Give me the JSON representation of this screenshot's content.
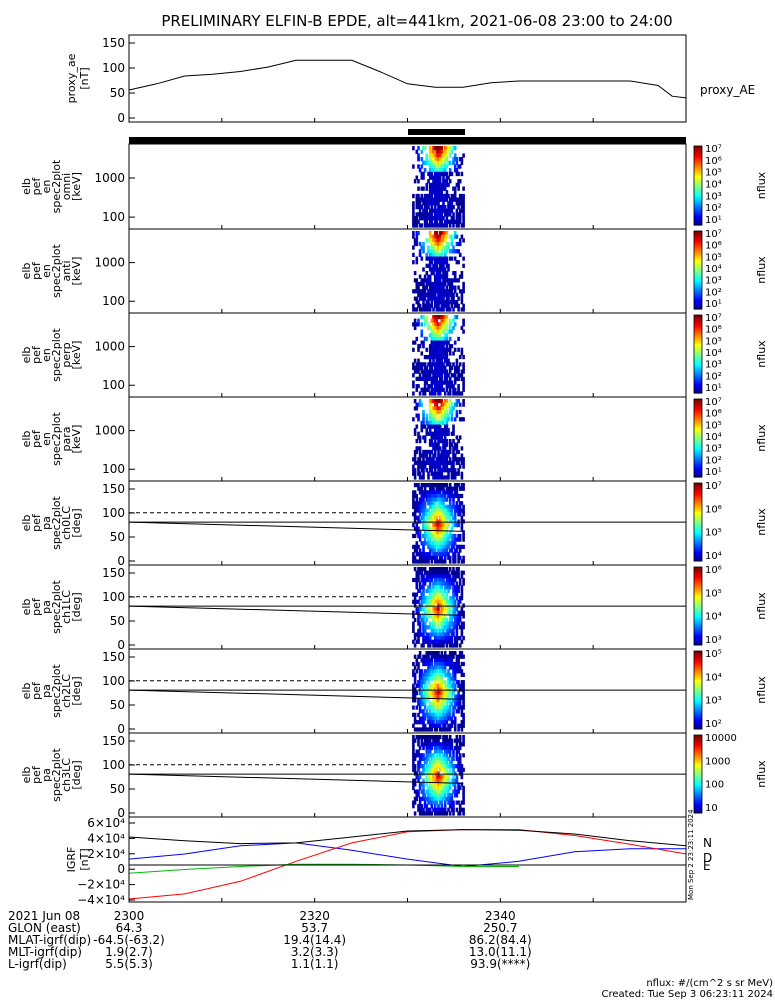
{
  "title": "PRELIMINARY ELFIN-B EPDE, alt=441km, 2021-06-08 23:00 to 24:00",
  "colors": {
    "night_bar": "#000000",
    "day_bar": "#ffd700",
    "science_zone": "#ff1a1a",
    "grf_n": "#0000ff",
    "grf_d": "#ff0000",
    "grf_e": "#00bb00"
  },
  "panels": {
    "proxy_ae": {
      "ylabel_lines": [
        "proxy_ae",
        "[nT]"
      ],
      "ticks": [
        "150",
        "100",
        "50",
        "0"
      ],
      "legend": "proxy_AE"
    },
    "pef_omni": {
      "ylabel_lines": [
        "elb",
        "pef",
        "en",
        "spec2plot",
        "omni",
        "[keV]"
      ],
      "ticks": [
        "1000",
        "100"
      ]
    },
    "pef_anti": {
      "ylabel_lines": [
        "elb",
        "pef",
        "en",
        "spec2plot",
        "anti",
        "[keV]"
      ],
      "ticks": [
        "1000",
        "100"
      ]
    },
    "pef_perp": {
      "ylabel_lines": [
        "elb",
        "pef",
        "en",
        "spec2plot",
        "perp",
        "[keV]"
      ],
      "ticks": [
        "1000",
        "100"
      ]
    },
    "pef_para": {
      "ylabel_lines": [
        "elb",
        "pef",
        "en",
        "spec2plot",
        "para",
        "[keV]"
      ],
      "ticks": [
        "1000",
        "100"
      ]
    },
    "pa_ch0": {
      "ylabel_lines": [
        "elb",
        "pef",
        "pa",
        "spec2plot",
        "ch0LC",
        "[deg]"
      ],
      "ticks": [
        "150",
        "100",
        "50",
        "0"
      ]
    },
    "pa_ch1": {
      "ylabel_lines": [
        "elb",
        "pef",
        "pa",
        "spec2plot",
        "ch1LC",
        "[deg]"
      ],
      "ticks": [
        "150",
        "100",
        "50",
        "0"
      ]
    },
    "pa_ch2": {
      "ylabel_lines": [
        "elb",
        "pef",
        "pa",
        "spec2plot",
        "ch2LC",
        "[deg]"
      ],
      "ticks": [
        "150",
        "100",
        "50",
        "0"
      ]
    },
    "pa_ch3": {
      "ylabel_lines": [
        "elb",
        "pef",
        "pa",
        "spec2plot",
        "ch3LC",
        "[deg]"
      ],
      "ticks": [
        "150",
        "100",
        "50",
        "0"
      ]
    },
    "grf": {
      "ylabel_lines": [
        "IGRF",
        "[nT]"
      ],
      "ticks": [
        "6×10⁴",
        "4×10⁴",
        "2×10⁴",
        "0",
        "−2×10⁴",
        "−4×10⁴"
      ],
      "legend": [
        "N",
        "D",
        "E"
      ]
    }
  },
  "colorbars": {
    "cb1": {
      "ticks": [
        "10⁷",
        "10⁶",
        "10⁵",
        "10⁴",
        "10³",
        "10²",
        "10¹"
      ],
      "label": "nflux"
    },
    "cb2": {
      "ticks": [
        "10⁷",
        "10⁶",
        "10⁵",
        "10⁴",
        "10³",
        "10²",
        "10¹"
      ],
      "label": "nflux"
    },
    "cb3": {
      "ticks": [
        "10⁷",
        "10⁶",
        "10⁵",
        "10⁴",
        "10³",
        "10²",
        "10¹"
      ],
      "label": "nflux"
    },
    "cb4": {
      "ticks": [
        "10⁷",
        "10⁶",
        "10⁵",
        "10⁴",
        "10³",
        "10²",
        "10¹"
      ],
      "label": "nflux"
    },
    "cb5": {
      "ticks": [
        "10⁷",
        "10⁶",
        "10⁵",
        "10⁴"
      ],
      "label": "nflux"
    },
    "cb6": {
      "ticks": [
        "10⁶",
        "10⁵",
        "10⁴",
        "10³"
      ],
      "label": "nflux"
    },
    "cb7": {
      "ticks": [
        "10⁵",
        "10⁴",
        "10³",
        "10²"
      ],
      "label": "nflux"
    },
    "cb8": {
      "ticks": [
        "10000",
        "1000",
        "100",
        "10"
      ],
      "label": "nflux"
    }
  },
  "footer": {
    "rows": [
      {
        "label": "2021 Jun 08",
        "v1": "2300",
        "v2": "2320",
        "v3": "2340"
      },
      {
        "label": "GLON (east)",
        "v1": "64.3",
        "v2": "53.7",
        "v3": "250.7"
      },
      {
        "label": "MLAT-igrf(dip)",
        "v1": "-64.5(-63.2)",
        "v2": "19.4(14.4)",
        "v3": "86.2(84.4)"
      },
      {
        "label": "MLT-igrf(dip)",
        "v1": "1.9(2.7)",
        "v2": "3.2(3.3)",
        "v3": "13.0(11.1)"
      },
      {
        "label": "L-igrf(dip)",
        "v1": "5.5(5.3)",
        "v2": "1.1(1.1)",
        "v3": "93.9(****)"
      }
    ],
    "units": "nflux: #/(cm^2 s sr MeV)",
    "created": "Created: Tue Sep  3 06:23:11 2024",
    "side_stamp": "Mon Sep  2 23:23:11 2024"
  },
  "chart_data": [
    {
      "type": "line",
      "panel": "proxy_ae",
      "series": [
        {
          "name": "proxy_AE",
          "x": [
            0,
            3,
            6,
            9,
            12,
            15,
            18,
            21,
            24,
            27,
            30,
            33,
            36,
            39,
            42,
            45,
            48,
            51,
            54,
            57,
            58.5,
            60
          ],
          "y": [
            57,
            68,
            82,
            85,
            90,
            98,
            110,
            110,
            110,
            90,
            68,
            62,
            62,
            70,
            73,
            73,
            73,
            73,
            73,
            65,
            46,
            43
          ]
        }
      ],
      "xlim": [
        0,
        60
      ],
      "ylim": [
        0,
        155
      ]
    },
    {
      "type": "heatmap",
      "panel": "pef_omni",
      "description_units": "x: minutes after 23:00, y: keV",
      "peak_time": 33.2,
      "time_range": [
        30.5,
        36.0
      ],
      "energy_peak": 100,
      "ylim": [
        60,
        7000
      ]
    },
    {
      "type": "heatmap",
      "panel": "pef_anti",
      "peak_time": 33.2,
      "time_range": [
        30.5,
        36.0
      ],
      "ylim": [
        60,
        7000
      ]
    },
    {
      "type": "heatmap",
      "panel": "pef_perp",
      "peak_time": 33.2,
      "time_range": [
        30.5,
        36.0
      ],
      "ylim": [
        60,
        7000
      ]
    },
    {
      "type": "heatmap",
      "panel": "pef_para",
      "peak_time": 33.2,
      "time_range": [
        30.5,
        36.0
      ],
      "ylim": [
        60,
        7000
      ]
    },
    {
      "type": "heatmap",
      "panel": "pa_ch0",
      "peak_time": 33.2,
      "time_range": [
        30.5,
        36.0
      ],
      "ylim": [
        0,
        180
      ],
      "loss_cone_solid": {
        "x": [
          0,
          36
        ],
        "y": [
          92,
          72
        ]
      },
      "loss_cone_dashed": {
        "x": [
          0,
          30
        ],
        "y": [
          112,
          112
        ]
      },
      "ref_line_y": 92
    },
    {
      "type": "heatmap",
      "panel": "pa_ch1",
      "peak_time": 33.2,
      "time_range": [
        30.5,
        36.0
      ],
      "ylim": [
        0,
        180
      ],
      "loss_cone_solid": {
        "x": [
          0,
          36
        ],
        "y": [
          92,
          72
        ]
      },
      "loss_cone_dashed": {
        "x": [
          0,
          30
        ],
        "y": [
          112,
          112
        ]
      },
      "ref_line_y": 92
    },
    {
      "type": "heatmap",
      "panel": "pa_ch2",
      "peak_time": 33.2,
      "time_range": [
        30.5,
        36.0
      ],
      "ylim": [
        0,
        180
      ],
      "loss_cone_solid": {
        "x": [
          0,
          36
        ],
        "y": [
          92,
          72
        ]
      },
      "loss_cone_dashed": {
        "x": [
          0,
          30
        ],
        "y": [
          112,
          112
        ]
      },
      "ref_line_y": 92
    },
    {
      "type": "heatmap",
      "panel": "pa_ch3",
      "peak_time": 33.2,
      "time_range": [
        30.5,
        36.0
      ],
      "ylim": [
        0,
        180
      ],
      "loss_cone_solid": {
        "x": [
          0,
          36
        ],
        "y": [
          92,
          72
        ]
      },
      "loss_cone_dashed": {
        "x": [
          0,
          30
        ],
        "y": [
          112,
          112
        ]
      },
      "ref_line_y": 92
    },
    {
      "type": "line",
      "panel": "grf",
      "xlim": [
        0,
        60
      ],
      "ylim": [
        -50000,
        65000
      ],
      "series": [
        {
          "name": "N",
          "x": [
            0,
            6,
            12,
            18,
            24,
            30,
            36,
            42,
            48,
            54,
            60
          ],
          "y": [
            8000,
            15000,
            26000,
            30000,
            20000,
            8000,
            -2000,
            5000,
            18000,
            22000,
            22000
          ]
        },
        {
          "name": "D",
          "x": [
            0,
            6,
            12,
            18,
            24,
            30,
            36,
            42,
            48,
            54,
            60
          ],
          "y": [
            -46000,
            -39000,
            -22000,
            5000,
            30000,
            45000,
            48000,
            48000,
            40000,
            28000,
            15000
          ]
        },
        {
          "name": "E",
          "x": [
            0,
            6,
            12,
            18,
            24,
            30,
            36,
            42
          ],
          "y": [
            -11000,
            -6000,
            -2000,
            1000,
            1000,
            0,
            -2000,
            -2000
          ]
        },
        {
          "name": "",
          "x": [
            0,
            6,
            12,
            18,
            24,
            30,
            36,
            42,
            48,
            54,
            60
          ],
          "y": [
            38000,
            33000,
            29000,
            30000,
            38000,
            46000,
            48000,
            47000,
            42000,
            33000,
            26000
          ]
        }
      ]
    }
  ]
}
